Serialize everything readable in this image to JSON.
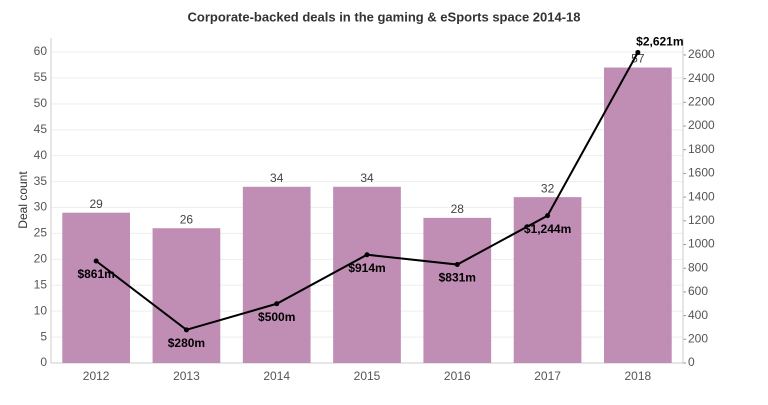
{
  "chart_data": {
    "type": "combo",
    "title": "Corporate-backed deals in the gaming & eSports space 2014-18",
    "ylabel": "Deal count",
    "categories": [
      "2012",
      "2013",
      "2014",
      "2015",
      "2016",
      "2017",
      "2018"
    ],
    "values": [
      29,
      26,
      34,
      34,
      28,
      32,
      57
    ],
    "color": "#c08db5",
    "line": {
      "values": [
        861,
        280,
        500,
        914,
        831,
        1244,
        2621
      ],
      "value_labels": [
        "$861m",
        "$280m",
        "$500m",
        "$914m",
        "$831m",
        "$1,244m",
        "$2,621m"
      ],
      "color": "#000000",
      "axis": "y2"
    },
    "ylim": [
      0,
      62.7
    ],
    "yticks": [
      0,
      5,
      10,
      15,
      20,
      25,
      30,
      35,
      40,
      45,
      50,
      55,
      60
    ],
    "y2lim": [
      0,
      2743
    ],
    "y2ticks": [
      0,
      200,
      400,
      600,
      800,
      1000,
      1200,
      1400,
      1600,
      1800,
      2000,
      2200,
      2400,
      2600
    ],
    "grid": true
  }
}
